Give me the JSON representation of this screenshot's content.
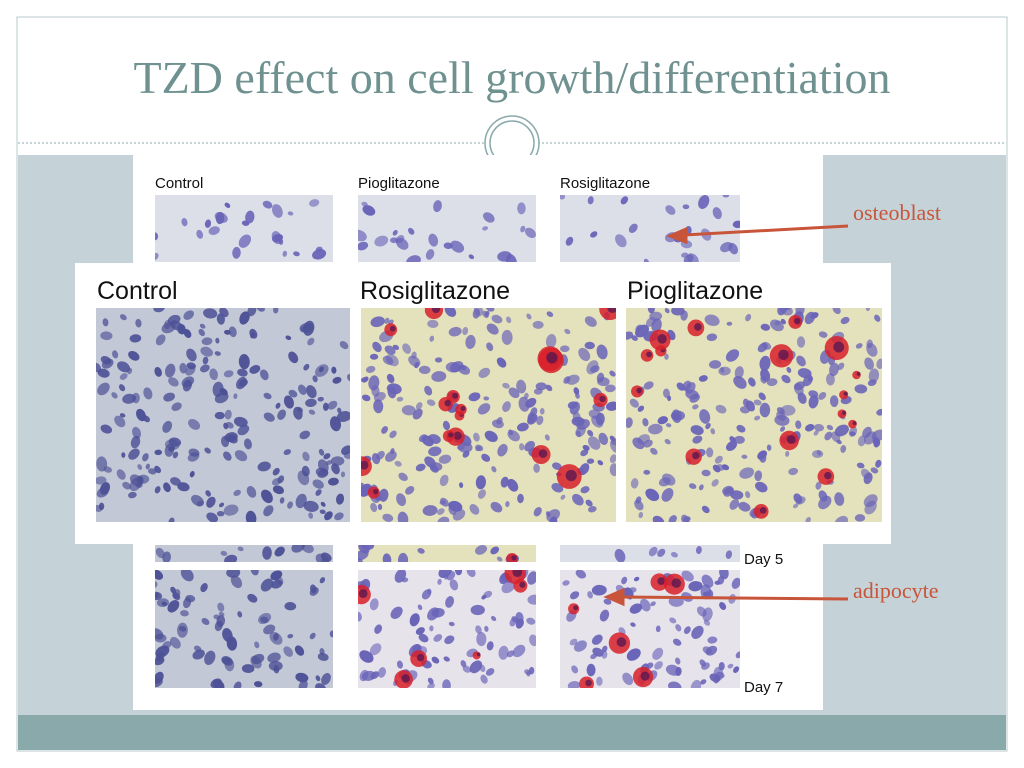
{
  "title": "TZD effect on cell growth/differentiation",
  "top_labels": [
    "Control",
    "Pioglitazone",
    "Rosiglitazone"
  ],
  "panel_labels": [
    "Control",
    "Rosiglitazone",
    "Pioglitazone"
  ],
  "day_labels": [
    "Day 5",
    "Day 7"
  ],
  "annotations": [
    "osteoblast",
    "adipocyte"
  ]
}
